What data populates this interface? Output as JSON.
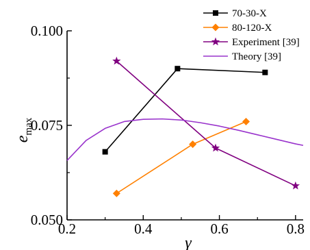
{
  "chart_data": {
    "type": "line",
    "xlabel": "γ",
    "ylabel": "e",
    "ylabel_sub": "max",
    "xlim": [
      0.2,
      0.82
    ],
    "ylim": [
      0.05,
      0.1
    ],
    "x_ticks": [
      "0.2",
      "0.4",
      "0.6",
      "0.8"
    ],
    "y_ticks": [
      "0.050",
      "0.075",
      "0.100"
    ],
    "legend_position": "top-right",
    "series": [
      {
        "name": "70-30-X",
        "color": "#000000",
        "marker": "square",
        "x": [
          0.3,
          0.49,
          0.72
        ],
        "y": [
          0.068,
          0.09,
          0.089
        ]
      },
      {
        "name": "80-120-X",
        "color": "#ff8000",
        "marker": "diamond",
        "x": [
          0.33,
          0.53,
          0.67
        ],
        "y": [
          0.057,
          0.07,
          0.076
        ]
      },
      {
        "name": "Experiment [39]",
        "color": "#800080",
        "marker": "star",
        "x": [
          0.33,
          0.59,
          0.8
        ],
        "y": [
          0.092,
          0.069,
          0.059
        ]
      },
      {
        "name": "Theory [39]",
        "color": "#9933cc",
        "marker": "none",
        "x": [
          0.2,
          0.25,
          0.3,
          0.35,
          0.4,
          0.45,
          0.5,
          0.55,
          0.6,
          0.65,
          0.7,
          0.75,
          0.8,
          0.82
        ],
        "y": [
          0.0657,
          0.071,
          0.0742,
          0.076,
          0.0766,
          0.0767,
          0.0764,
          0.0757,
          0.0748,
          0.0737,
          0.0725,
          0.0713,
          0.0701,
          0.0697
        ]
      }
    ]
  }
}
